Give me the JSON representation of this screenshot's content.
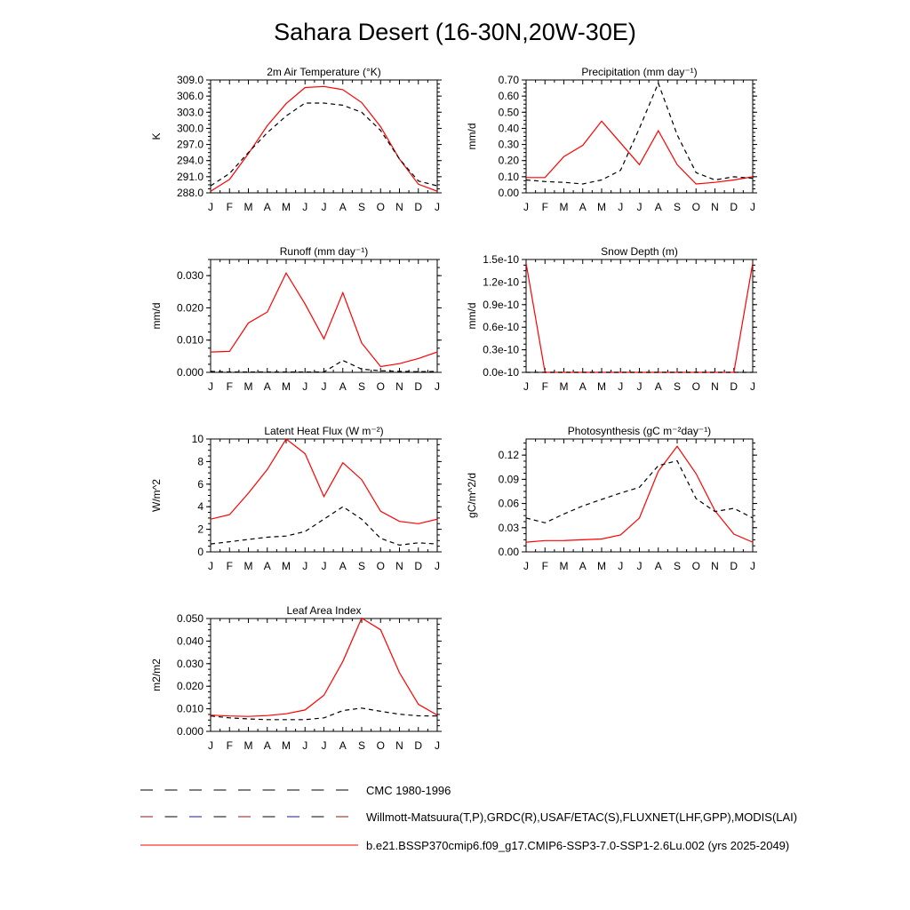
{
  "title": "Sahara Desert (16-30N,20W-30E)",
  "months": [
    "J",
    "F",
    "M",
    "A",
    "M",
    "J",
    "J",
    "A",
    "S",
    "O",
    "N",
    "D",
    "J"
  ],
  "legend": [
    {
      "label": "CMC 1980-1996",
      "style": "dash",
      "color": "#000000",
      "dash_colors": [
        "#000000"
      ]
    },
    {
      "label": "Willmott-Matsuura(T,P),GRDC(R),USAF/ETAC(S),FLUXNET(LHF,GPP),MODIS(LAI)",
      "style": "dash",
      "color": "#000000",
      "dash_colors": [
        "#8b1a1a",
        "#000000",
        "#1a1a8b",
        "#000000"
      ]
    },
    {
      "label": "b.e21.BSSP370cmip6.f09_g17.CMIP6-SSP3-7.0-SSP1-2.6Lu.002 (yrs 2025-2049)",
      "style": "solid",
      "color": "#ff0000"
    }
  ],
  "chart_data": [
    {
      "type": "line",
      "title": "2m Air Temperature (°K)",
      "ylabel": "K",
      "ylim": [
        288,
        309
      ],
      "yticks": [
        288,
        291,
        294,
        297,
        300,
        303,
        306,
        309
      ],
      "ytick_labels": [
        "288.0",
        "291.0",
        "294.0",
        "297.0",
        "300.0",
        "303.0",
        "306.0",
        "309.0"
      ],
      "categories": [
        "J",
        "F",
        "M",
        "A",
        "M",
        "J",
        "J",
        "A",
        "S",
        "O",
        "N",
        "D",
        "J"
      ],
      "series": [
        {
          "color": "#ff0000",
          "style": "solid",
          "values": [
            288.3,
            290.5,
            295.3,
            300.5,
            304.6,
            307.6,
            307.8,
            307.2,
            304.8,
            300.3,
            294.3,
            289.6,
            288.3
          ]
        },
        {
          "color": "#000000",
          "style": "dash",
          "values": [
            289.3,
            291.6,
            295.5,
            299.2,
            302.3,
            304.7,
            304.7,
            304.3,
            303.0,
            299.6,
            294.3,
            290.2,
            289.3
          ]
        }
      ]
    },
    {
      "type": "line",
      "title": "Precipitation (mm day⁻¹)",
      "ylabel": "mm/d",
      "ylim": [
        0,
        0.7
      ],
      "yticks": [
        0,
        0.1,
        0.2,
        0.3,
        0.4,
        0.5,
        0.6,
        0.7
      ],
      "ytick_labels": [
        "0.00",
        "0.10",
        "0.20",
        "0.30",
        "0.40",
        "0.50",
        "0.60",
        "0.70"
      ],
      "categories": [
        "J",
        "F",
        "M",
        "A",
        "M",
        "J",
        "J",
        "A",
        "S",
        "O",
        "N",
        "D",
        "J"
      ],
      "series": [
        {
          "color": "#ff0000",
          "style": "solid",
          "values": [
            0.095,
            0.095,
            0.225,
            0.295,
            0.445,
            0.31,
            0.175,
            0.385,
            0.175,
            0.055,
            0.065,
            0.08,
            0.1
          ]
        },
        {
          "color": "#000000",
          "style": "dash",
          "values": [
            0.08,
            0.07,
            0.065,
            0.055,
            0.08,
            0.14,
            0.4,
            0.68,
            0.36,
            0.125,
            0.08,
            0.1,
            0.09
          ]
        }
      ]
    },
    {
      "type": "line",
      "title": "Runoff (mm day⁻¹)",
      "ylabel": "mm/d",
      "ylim": [
        0,
        0.035
      ],
      "yticks": [
        0,
        0.01,
        0.02,
        0.03
      ],
      "ytick_labels": [
        "0.000",
        "0.010",
        "0.020",
        "0.030"
      ],
      "categories": [
        "J",
        "F",
        "M",
        "A",
        "M",
        "J",
        "J",
        "A",
        "S",
        "O",
        "N",
        "D",
        "J"
      ],
      "series": [
        {
          "color": "#ff0000",
          "style": "solid",
          "values": [
            0.0063,
            0.0065,
            0.0153,
            0.0187,
            0.0308,
            0.0212,
            0.0104,
            0.0247,
            0.0091,
            0.0018,
            0.0027,
            0.0043,
            0.0063
          ]
        },
        {
          "color": "#000000",
          "style": "dash",
          "values": [
            0.0003,
            0.0001,
            0.0001,
            0.0001,
            0.0001,
            0.0001,
            0.0001,
            0.0037,
            0.001,
            0.0005,
            0.0003,
            0.0002,
            0.0003
          ]
        }
      ]
    },
    {
      "type": "line",
      "title": "Snow Depth (m)",
      "ylabel": "mm/d",
      "ylim": [
        0,
        1.5e-10
      ],
      "yticks": [
        0,
        3e-11,
        6e-11,
        9e-11,
        1.2e-10,
        1.5e-10
      ],
      "ytick_labels": [
        "0.0e-10",
        "0.3e-10",
        "0.6e-10",
        "0.9e-10",
        "1.2e-10",
        "1.5e-10"
      ],
      "categories": [
        "J",
        "F",
        "M",
        "A",
        "M",
        "J",
        "J",
        "A",
        "S",
        "O",
        "N",
        "D",
        "J"
      ],
      "series": [
        {
          "color": "#ff0000",
          "style": "solid",
          "values": [
            1.45e-10,
            0,
            0,
            0,
            0,
            0,
            0,
            0,
            0,
            0,
            0,
            0,
            1.45e-10
          ]
        },
        {
          "color": "#000000",
          "style": "dash",
          "values": [
            0,
            0,
            0,
            0,
            0,
            0,
            0,
            0,
            0,
            0,
            0,
            0,
            0
          ]
        }
      ]
    },
    {
      "type": "line",
      "title": "Latent Heat Flux (W m⁻²)",
      "ylabel": "W/m^2",
      "ylim": [
        0,
        10
      ],
      "yticks": [
        0,
        2,
        4,
        6,
        8,
        10
      ],
      "ytick_labels": [
        "0",
        "2",
        "4",
        "6",
        "8",
        "10"
      ],
      "categories": [
        "J",
        "F",
        "M",
        "A",
        "M",
        "J",
        "J",
        "A",
        "S",
        "O",
        "N",
        "D",
        "J"
      ],
      "series": [
        {
          "color": "#ff0000",
          "style": "solid",
          "values": [
            2.9,
            3.3,
            5.2,
            7.3,
            10.0,
            8.7,
            4.9,
            7.9,
            6.4,
            3.6,
            2.7,
            2.5,
            2.9
          ]
        },
        {
          "color": "#000000",
          "style": "dash",
          "values": [
            0.7,
            0.9,
            1.1,
            1.3,
            1.4,
            1.8,
            2.9,
            4.0,
            2.9,
            1.2,
            0.6,
            0.8,
            0.7
          ]
        }
      ]
    },
    {
      "type": "line",
      "title": "Photosynthesis (gC m⁻²day⁻¹)",
      "ylabel": "gC/m^2/d",
      "ylim": [
        0,
        0.14
      ],
      "yticks": [
        0,
        0.03,
        0.06,
        0.09,
        0.12
      ],
      "ytick_labels": [
        "0.00",
        "0.03",
        "0.06",
        "0.09",
        "0.12"
      ],
      "categories": [
        "J",
        "F",
        "M",
        "A",
        "M",
        "J",
        "J",
        "A",
        "S",
        "O",
        "N",
        "D",
        "J"
      ],
      "series": [
        {
          "color": "#ff0000",
          "style": "solid",
          "values": [
            0.012,
            0.014,
            0.014,
            0.015,
            0.016,
            0.021,
            0.042,
            0.1,
            0.131,
            0.097,
            0.051,
            0.022,
            0.012
          ]
        },
        {
          "color": "#000000",
          "style": "dash",
          "values": [
            0.042,
            0.036,
            0.047,
            0.057,
            0.065,
            0.073,
            0.08,
            0.107,
            0.113,
            0.066,
            0.05,
            0.054,
            0.042
          ]
        }
      ]
    },
    {
      "type": "line",
      "title": "Leaf Area Index",
      "ylabel": "m2/m2",
      "ylim": [
        0,
        0.05
      ],
      "yticks": [
        0,
        0.01,
        0.02,
        0.03,
        0.04,
        0.05
      ],
      "ytick_labels": [
        "0.000",
        "0.010",
        "0.020",
        "0.030",
        "0.040",
        "0.050"
      ],
      "categories": [
        "J",
        "F",
        "M",
        "A",
        "M",
        "J",
        "J",
        "A",
        "S",
        "O",
        "N",
        "D",
        "J"
      ],
      "series": [
        {
          "color": "#ff0000",
          "style": "solid",
          "values": [
            0.0072,
            0.0068,
            0.0066,
            0.007,
            0.0078,
            0.0095,
            0.016,
            0.031,
            0.0502,
            0.045,
            0.026,
            0.012,
            0.0072
          ]
        },
        {
          "color": "#000000",
          "style": "dash",
          "values": [
            0.0068,
            0.006,
            0.0055,
            0.0052,
            0.0052,
            0.0052,
            0.006,
            0.0092,
            0.0103,
            0.0089,
            0.0076,
            0.0069,
            0.0068
          ]
        }
      ]
    }
  ]
}
